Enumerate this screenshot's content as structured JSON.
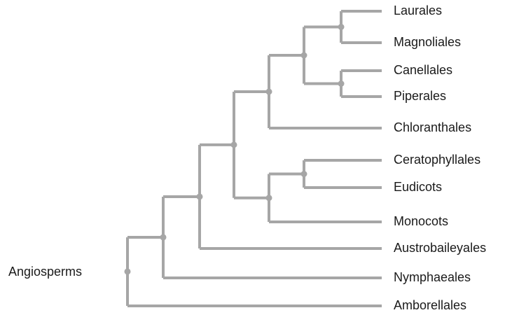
{
  "diagram": {
    "root_label": "Angiosperms",
    "tree": {
      "children": [
        {
          "children": [
            {
              "children": [
                {
                  "children": [
                    {
                      "children": [
                        {
                          "children": [
                            {
                              "children": [
                                {
                                  "label": "Laurales"
                                },
                                {
                                  "label": "Magnoliales"
                                }
                              ]
                            },
                            {
                              "children": [
                                {
                                  "label": "Canellales"
                                },
                                {
                                  "label": "Piperales"
                                }
                              ]
                            }
                          ]
                        },
                        {
                          "label": "Chloranthales"
                        }
                      ]
                    },
                    {
                      "children": [
                        {
                          "children": [
                            {
                              "label": "Ceratophyllales"
                            },
                            {
                              "label": "Eudicots"
                            }
                          ]
                        },
                        {
                          "label": "Monocots"
                        }
                      ]
                    }
                  ]
                },
                {
                  "label": "Austrobaileyales"
                }
              ]
            },
            {
              "label": "Nymphaeales"
            }
          ]
        },
        {
          "label": "Amborellales"
        }
      ]
    },
    "colors": {
      "branch": "#a6a6a6",
      "text": "#1a1a1a",
      "background": "#ffffff"
    }
  }
}
